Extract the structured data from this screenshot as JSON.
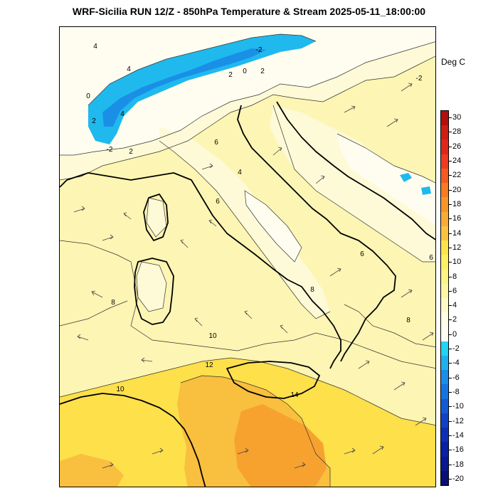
{
  "header": {
    "title": "WRF-Sicilia RUN 12/Z - 850hPa Temperature & Stream 2025-05-11_18:00:00"
  },
  "colorbar": {
    "unit": "Deg C",
    "labels": [
      "30",
      "28",
      "26",
      "24",
      "22",
      "20",
      "18",
      "16",
      "14",
      "12",
      "10",
      "8",
      "6",
      "4",
      "2",
      "0",
      "-2",
      "-4",
      "-6",
      "-8",
      "-10",
      "-12",
      "-14",
      "-16",
      "-18",
      "-20"
    ],
    "colors": [
      "#b40f0f",
      "#d01c14",
      "#e2261b",
      "#f03c1e",
      "#f55a20",
      "#f67b21",
      "#f8952a",
      "#f9ab35",
      "#fbc23f",
      "#fde448",
      "#fdf062",
      "#fdf483",
      "#fdf7a3",
      "#fefac6",
      "#fffde6",
      "#fffef4",
      "#22d3f2",
      "#1fb0ef",
      "#1a8ee8",
      "#1674e0",
      "#135ad6",
      "#1042c8",
      "#0d2fb8",
      "#0a20a6",
      "#0a1791",
      "#0a0f74"
    ]
  },
  "contour_labels": [
    "4",
    "4",
    "0",
    "-2",
    "2",
    "0",
    "2",
    "4",
    "2",
    "-2",
    "2",
    "6",
    "6",
    "4",
    "6",
    "8",
    "8",
    "10",
    "12",
    "10",
    "14",
    "8",
    "6",
    "-2"
  ],
  "colors": {
    "base": "#fdf5b3",
    "light": "#fefad7",
    "lighter": "#fffdf0",
    "orange": "#f9bf3e",
    "orange_dark": "#f7a22f",
    "yellow": "#fde04a",
    "blue": "#1fb9ee",
    "blue_dark": "#1a8fe6"
  }
}
